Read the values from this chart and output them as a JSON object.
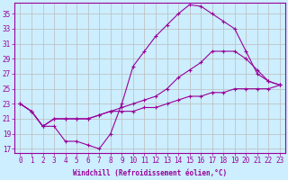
{
  "xlabel": "Windchill (Refroidissement éolien,°C)",
  "xlim": [
    -0.5,
    23.5
  ],
  "ylim": [
    16.5,
    36.5
  ],
  "xticks": [
    0,
    1,
    2,
    3,
    4,
    5,
    6,
    7,
    8,
    9,
    10,
    11,
    12,
    13,
    14,
    15,
    16,
    17,
    18,
    19,
    20,
    21,
    22,
    23
  ],
  "yticks": [
    17,
    19,
    21,
    23,
    25,
    27,
    29,
    31,
    33,
    35
  ],
  "bg_color": "#cceeff",
  "line_color": "#990099",
  "grid_color": "#bbbbbb",
  "line1_x": [
    0,
    1,
    2,
    3,
    4,
    5,
    6,
    7,
    8,
    9,
    10,
    11,
    12,
    13,
    14,
    15,
    16,
    17,
    18,
    19,
    20,
    21,
    22,
    23
  ],
  "line1_y": [
    23,
    22,
    20,
    20,
    18,
    18,
    17.5,
    17,
    19,
    23,
    28,
    30,
    32,
    33.5,
    35,
    36.2,
    36,
    35,
    34,
    33,
    30,
    27,
    26,
    25.5
  ],
  "line2_x": [
    0,
    1,
    2,
    3,
    4,
    5,
    6,
    7,
    8,
    9,
    10,
    11,
    12,
    13,
    14,
    15,
    16,
    17,
    18,
    19,
    20,
    21,
    22,
    23
  ],
  "line2_y": [
    23,
    22,
    20,
    21,
    21,
    21,
    21,
    21.5,
    22,
    22.5,
    23,
    23.5,
    24,
    25,
    26.5,
    27.5,
    28.5,
    30,
    30,
    30,
    29,
    27.5,
    26,
    25.5
  ],
  "line3_x": [
    0,
    1,
    2,
    3,
    4,
    5,
    6,
    7,
    8,
    9,
    10,
    11,
    12,
    13,
    14,
    15,
    16,
    17,
    18,
    19,
    20,
    21,
    22,
    23
  ],
  "line3_y": [
    23,
    22,
    20,
    21,
    21,
    21,
    21,
    21.5,
    22,
    22,
    22,
    22.5,
    22.5,
    23,
    23.5,
    24,
    24,
    24.5,
    24.5,
    25,
    25,
    25,
    25,
    25.5
  ],
  "font_family": "monospace",
  "tick_fontsize": 5.5,
  "xlabel_fontsize": 5.5
}
